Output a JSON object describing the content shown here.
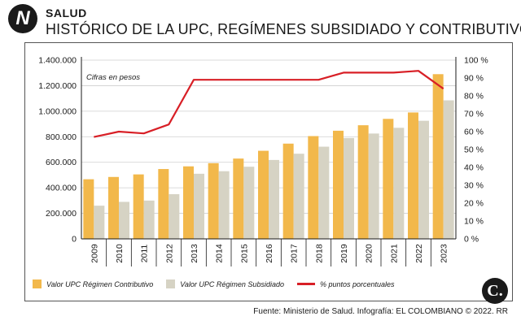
{
  "header": {
    "logo_glyph": "N",
    "section": "SALUD",
    "title": "HISTÓRICO DE LA UPC, REGÍMENES SUBSIDIADO Y CONTRIBUTIVO"
  },
  "chart_data": {
    "type": "bar",
    "note": "Cifras en pesos",
    "categories": [
      "2009",
      "2010",
      "2011",
      "2012",
      "2013",
      "2014",
      "2015",
      "2016",
      "2017",
      "2018",
      "2019",
      "2020",
      "2021",
      "2022",
      "2023"
    ],
    "series": [
      {
        "name": "Valor UPC Régimen Contributivo",
        "type": "bar",
        "axis": "left",
        "color": "#f2b84b",
        "values": [
          467000,
          485000,
          505000,
          547000,
          568000,
          593000,
          629000,
          690000,
          746000,
          805000,
          847000,
          890000,
          940000,
          990000,
          1290000
        ]
      },
      {
        "name": "Valor UPC Régimen Subsidiado",
        "type": "bar",
        "axis": "left",
        "color": "#d6d3c4",
        "values": [
          260000,
          290000,
          300000,
          350000,
          510000,
          530000,
          565000,
          618000,
          667000,
          722000,
          790000,
          825000,
          870000,
          925000,
          1085000
        ]
      },
      {
        "name": "% puntos porcentuales",
        "type": "line",
        "axis": "right",
        "color": "#d81f26",
        "values": [
          57,
          60,
          59,
          64,
          89,
          89,
          89,
          89,
          89,
          89,
          93,
          93,
          93,
          94,
          84
        ]
      }
    ],
    "y_left": {
      "ylim": [
        0,
        1400000
      ],
      "tick_labels": [
        "0",
        "200.000",
        "400.000",
        "600.000",
        "800.000",
        "1.000.000",
        "1.200.000",
        "1.400.000"
      ]
    },
    "y_right": {
      "ylim": [
        0,
        100
      ],
      "tick_labels": [
        "0 %",
        "10 %",
        "20 %",
        "30 %",
        "40 %",
        "50 %",
        "60 %",
        "70 %",
        "80 %",
        "90 %",
        "100 %"
      ]
    },
    "grid": true
  },
  "legend": {
    "contributivo": "Valor UPC Régimen Contributivo",
    "subsidiado": "Valor UPC Régimen Subsidiado",
    "porcentaje": "% puntos porcentuales"
  },
  "brand_glyph": "C.",
  "footer": "Fuente: Ministerio de Salud. Infografía: EL COLOMBIANO © 2022. RR"
}
